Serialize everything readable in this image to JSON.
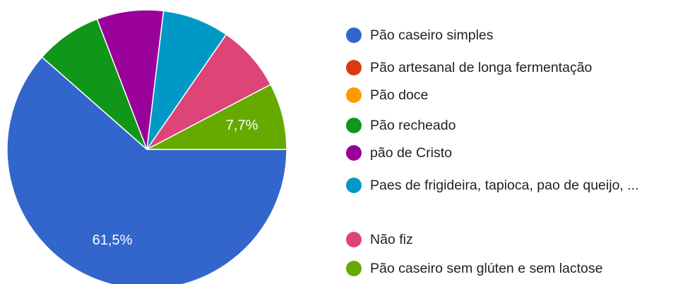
{
  "chart_data": {
    "type": "pie",
    "categories": [
      "Pão caseiro simples",
      "Pão artesanal de longa fermentação",
      "Pão doce",
      "Pão recheado",
      "pão de Cristo",
      "Paes de frigideira, tapioca, pao de queijo, ...",
      "Não fiz",
      "Pão caseiro sem glúten e sem lactose"
    ],
    "values": [
      61.5,
      0,
      0,
      7.7,
      7.7,
      7.7,
      7.7,
      7.7
    ],
    "value_labels": [
      "61,5%",
      null,
      null,
      null,
      null,
      null,
      null,
      "7,7%"
    ],
    "colors": [
      "#3366cc",
      "#dc3912",
      "#ff9900",
      "#109618",
      "#990099",
      "#0099c6",
      "#dd4477",
      "#66aa00"
    ],
    "legend": "right"
  }
}
